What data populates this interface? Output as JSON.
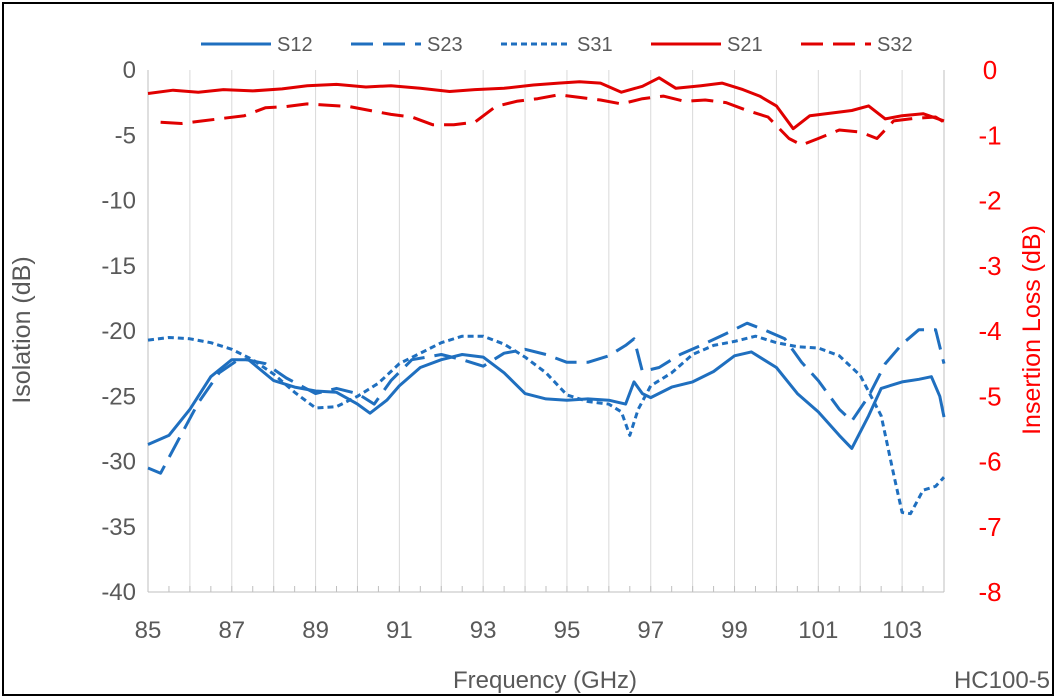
{
  "chart_data": {
    "type": "line",
    "xlabel": "Frequency (GHz)",
    "ylabel": "Isolation (dB)",
    "y2label": "Insertion Loss (dB)",
    "xlim": [
      85,
      104
    ],
    "ylim": [
      -40,
      0
    ],
    "y2lim": [
      -8,
      0
    ],
    "x_ticks": [
      85,
      87,
      89,
      91,
      93,
      95,
      97,
      99,
      101,
      103
    ],
    "x_ticks_labels": [
      "85",
      "87",
      "89",
      "91",
      "93",
      "95",
      "97",
      "99",
      "101",
      "103"
    ],
    "y_ticks_labels": [
      "0",
      "-5",
      "-10",
      "-15",
      "-20",
      "-25",
      "-30",
      "-35",
      "-40"
    ],
    "y2_ticks_labels": [
      "0",
      "-1",
      "-2",
      "-3",
      "-4",
      "-5",
      "-6",
      "-7",
      "-8"
    ],
    "grid": "vertical",
    "legend_position": "top",
    "note": "HC100-5",
    "colors": {
      "blue": "#1f6fbf",
      "red": "#e00000",
      "text": "#595959",
      "grid": "#d9d9d9"
    },
    "series": [
      {
        "name": "S12",
        "axis": "left",
        "color": "#1f6fbf",
        "dash": "solid",
        "points": [
          [
            85,
            -28.7
          ],
          [
            85.5,
            -28.0
          ],
          [
            86,
            -26.0
          ],
          [
            86.5,
            -23.5
          ],
          [
            87,
            -22.2
          ],
          [
            87.4,
            -22.2
          ],
          [
            88,
            -23.8
          ],
          [
            88.5,
            -24.3
          ],
          [
            89,
            -24.6
          ],
          [
            89.5,
            -24.7
          ],
          [
            90,
            -25.6
          ],
          [
            90.3,
            -26.3
          ],
          [
            90.7,
            -25.3
          ],
          [
            91,
            -24.2
          ],
          [
            91.5,
            -22.8
          ],
          [
            92,
            -22.2
          ],
          [
            92.5,
            -21.8
          ],
          [
            93,
            -22.0
          ],
          [
            93.5,
            -23.2
          ],
          [
            94,
            -24.8
          ],
          [
            94.5,
            -25.2
          ],
          [
            95,
            -25.3
          ],
          [
            95.5,
            -25.2
          ],
          [
            96,
            -25.3
          ],
          [
            96.4,
            -25.6
          ],
          [
            96.6,
            -23.9
          ],
          [
            96.8,
            -24.8
          ],
          [
            97,
            -25.1
          ],
          [
            97.5,
            -24.3
          ],
          [
            98,
            -23.9
          ],
          [
            98.5,
            -23.1
          ],
          [
            99,
            -21.9
          ],
          [
            99.4,
            -21.6
          ],
          [
            100,
            -22.8
          ],
          [
            100.5,
            -24.8
          ],
          [
            101,
            -26.2
          ],
          [
            101.5,
            -28.0
          ],
          [
            101.8,
            -29.0
          ],
          [
            102.2,
            -26.5
          ],
          [
            102.5,
            -24.4
          ],
          [
            103,
            -23.9
          ],
          [
            103.4,
            -23.7
          ],
          [
            103.7,
            -23.5
          ],
          [
            103.9,
            -25.0
          ],
          [
            104,
            -26.6
          ]
        ]
      },
      {
        "name": "S23",
        "axis": "left",
        "color": "#1f6fbf",
        "dash": "long",
        "points": [
          [
            85,
            -30.5
          ],
          [
            85.3,
            -30.9
          ],
          [
            85.7,
            -28.5
          ],
          [
            86.2,
            -25.5
          ],
          [
            86.7,
            -23.2
          ],
          [
            87.2,
            -22.1
          ],
          [
            87.8,
            -22.5
          ],
          [
            88.3,
            -23.6
          ],
          [
            89,
            -24.8
          ],
          [
            89.5,
            -24.4
          ],
          [
            90,
            -24.8
          ],
          [
            90.4,
            -25.6
          ],
          [
            90.8,
            -23.8
          ],
          [
            91.3,
            -22.2
          ],
          [
            92,
            -21.8
          ],
          [
            92.5,
            -22.2
          ],
          [
            93,
            -22.7
          ],
          [
            93.5,
            -21.7
          ],
          [
            94,
            -21.4
          ],
          [
            94.5,
            -21.8
          ],
          [
            95,
            -22.4
          ],
          [
            95.5,
            -22.4
          ],
          [
            96,
            -21.9
          ],
          [
            96.4,
            -21.1
          ],
          [
            96.6,
            -20.6
          ],
          [
            96.8,
            -23.1
          ],
          [
            97.2,
            -22.8
          ],
          [
            97.7,
            -21.8
          ],
          [
            98.2,
            -21.1
          ],
          [
            98.8,
            -20.2
          ],
          [
            99.3,
            -19.4
          ],
          [
            99.7,
            -19.9
          ],
          [
            100.2,
            -20.6
          ],
          [
            100.6,
            -22.4
          ],
          [
            101,
            -23.8
          ],
          [
            101.5,
            -26.0
          ],
          [
            101.8,
            -26.9
          ],
          [
            102.2,
            -25.0
          ],
          [
            102.6,
            -22.5
          ],
          [
            103,
            -21.0
          ],
          [
            103.4,
            -19.9
          ],
          [
            103.8,
            -19.9
          ],
          [
            104,
            -22.5
          ]
        ]
      },
      {
        "name": "S31",
        "axis": "left",
        "color": "#1f6fbf",
        "dash": "short",
        "points": [
          [
            85,
            -20.7
          ],
          [
            85.5,
            -20.5
          ],
          [
            86,
            -20.6
          ],
          [
            86.5,
            -20.9
          ],
          [
            87,
            -21.4
          ],
          [
            87.5,
            -22.2
          ],
          [
            88,
            -23.3
          ],
          [
            88.5,
            -24.7
          ],
          [
            89,
            -25.9
          ],
          [
            89.5,
            -25.8
          ],
          [
            90,
            -25.0
          ],
          [
            90.5,
            -24.0
          ],
          [
            91,
            -22.5
          ],
          [
            91.5,
            -21.7
          ],
          [
            92,
            -20.9
          ],
          [
            92.5,
            -20.4
          ],
          [
            93,
            -20.4
          ],
          [
            93.5,
            -21.0
          ],
          [
            94,
            -22.0
          ],
          [
            94.5,
            -23.2
          ],
          [
            95,
            -24.9
          ],
          [
            95.5,
            -25.4
          ],
          [
            96,
            -25.6
          ],
          [
            96.3,
            -26.2
          ],
          [
            96.5,
            -28.0
          ],
          [
            96.7,
            -26.0
          ],
          [
            97,
            -24.2
          ],
          [
            97.5,
            -23.2
          ],
          [
            98,
            -21.8
          ],
          [
            98.5,
            -21.1
          ],
          [
            99,
            -20.8
          ],
          [
            99.5,
            -20.4
          ],
          [
            100,
            -20.9
          ],
          [
            100.5,
            -21.2
          ],
          [
            101,
            -21.3
          ],
          [
            101.5,
            -21.9
          ],
          [
            102,
            -23.4
          ],
          [
            102.5,
            -26.5
          ],
          [
            102.8,
            -31.0
          ],
          [
            103,
            -33.9
          ],
          [
            103.2,
            -34.0
          ],
          [
            103.5,
            -32.2
          ],
          [
            103.8,
            -31.9
          ],
          [
            104,
            -31.2
          ]
        ]
      },
      {
        "name": "S21",
        "axis": "right",
        "color": "#e00000",
        "dash": "solid",
        "points": [
          [
            85,
            -0.36
          ],
          [
            85.6,
            -0.31
          ],
          [
            86.2,
            -0.34
          ],
          [
            86.8,
            -0.3
          ],
          [
            87.5,
            -0.32
          ],
          [
            88.2,
            -0.29
          ],
          [
            88.8,
            -0.24
          ],
          [
            89.5,
            -0.22
          ],
          [
            90.2,
            -0.26
          ],
          [
            90.8,
            -0.24
          ],
          [
            91.5,
            -0.28
          ],
          [
            92.2,
            -0.33
          ],
          [
            92.8,
            -0.3
          ],
          [
            93.5,
            -0.28
          ],
          [
            94.2,
            -0.23
          ],
          [
            94.8,
            -0.2
          ],
          [
            95.3,
            -0.18
          ],
          [
            95.8,
            -0.2
          ],
          [
            96.3,
            -0.34
          ],
          [
            96.8,
            -0.25
          ],
          [
            97.2,
            -0.12
          ],
          [
            97.6,
            -0.28
          ],
          [
            98.2,
            -0.24
          ],
          [
            98.7,
            -0.2
          ],
          [
            99.2,
            -0.3
          ],
          [
            99.6,
            -0.4
          ],
          [
            100.0,
            -0.55
          ],
          [
            100.4,
            -0.9
          ],
          [
            100.8,
            -0.7
          ],
          [
            101.3,
            -0.66
          ],
          [
            101.8,
            -0.62
          ],
          [
            102.2,
            -0.55
          ],
          [
            102.6,
            -0.75
          ],
          [
            103.0,
            -0.7
          ],
          [
            103.5,
            -0.67
          ],
          [
            104.0,
            -0.78
          ]
        ]
      },
      {
        "name": "S32",
        "axis": "right",
        "color": "#e00000",
        "dash": "long",
        "points": [
          [
            85.3,
            -0.8
          ],
          [
            85.8,
            -0.82
          ],
          [
            86.3,
            -0.78
          ],
          [
            86.8,
            -0.74
          ],
          [
            87.3,
            -0.7
          ],
          [
            87.8,
            -0.58
          ],
          [
            88.3,
            -0.56
          ],
          [
            88.8,
            -0.52
          ],
          [
            89.3,
            -0.54
          ],
          [
            89.8,
            -0.56
          ],
          [
            90.3,
            -0.62
          ],
          [
            90.8,
            -0.68
          ],
          [
            91.3,
            -0.72
          ],
          [
            91.8,
            -0.84
          ],
          [
            92.3,
            -0.84
          ],
          [
            92.8,
            -0.8
          ],
          [
            93.3,
            -0.56
          ],
          [
            93.8,
            -0.48
          ],
          [
            94.3,
            -0.44
          ],
          [
            94.8,
            -0.38
          ],
          [
            95.3,
            -0.42
          ],
          [
            95.8,
            -0.46
          ],
          [
            96.3,
            -0.52
          ],
          [
            96.8,
            -0.44
          ],
          [
            97.3,
            -0.4
          ],
          [
            97.8,
            -0.48
          ],
          [
            98.3,
            -0.46
          ],
          [
            98.8,
            -0.5
          ],
          [
            99.3,
            -0.62
          ],
          [
            99.8,
            -0.72
          ],
          [
            100.3,
            -1.05
          ],
          [
            100.6,
            -1.15
          ],
          [
            101.0,
            -1.05
          ],
          [
            101.5,
            -0.92
          ],
          [
            102.0,
            -0.95
          ],
          [
            102.4,
            -1.05
          ],
          [
            102.8,
            -0.78
          ],
          [
            103.3,
            -0.74
          ],
          [
            103.8,
            -0.72
          ],
          [
            104.0,
            -0.8
          ]
        ]
      }
    ]
  }
}
